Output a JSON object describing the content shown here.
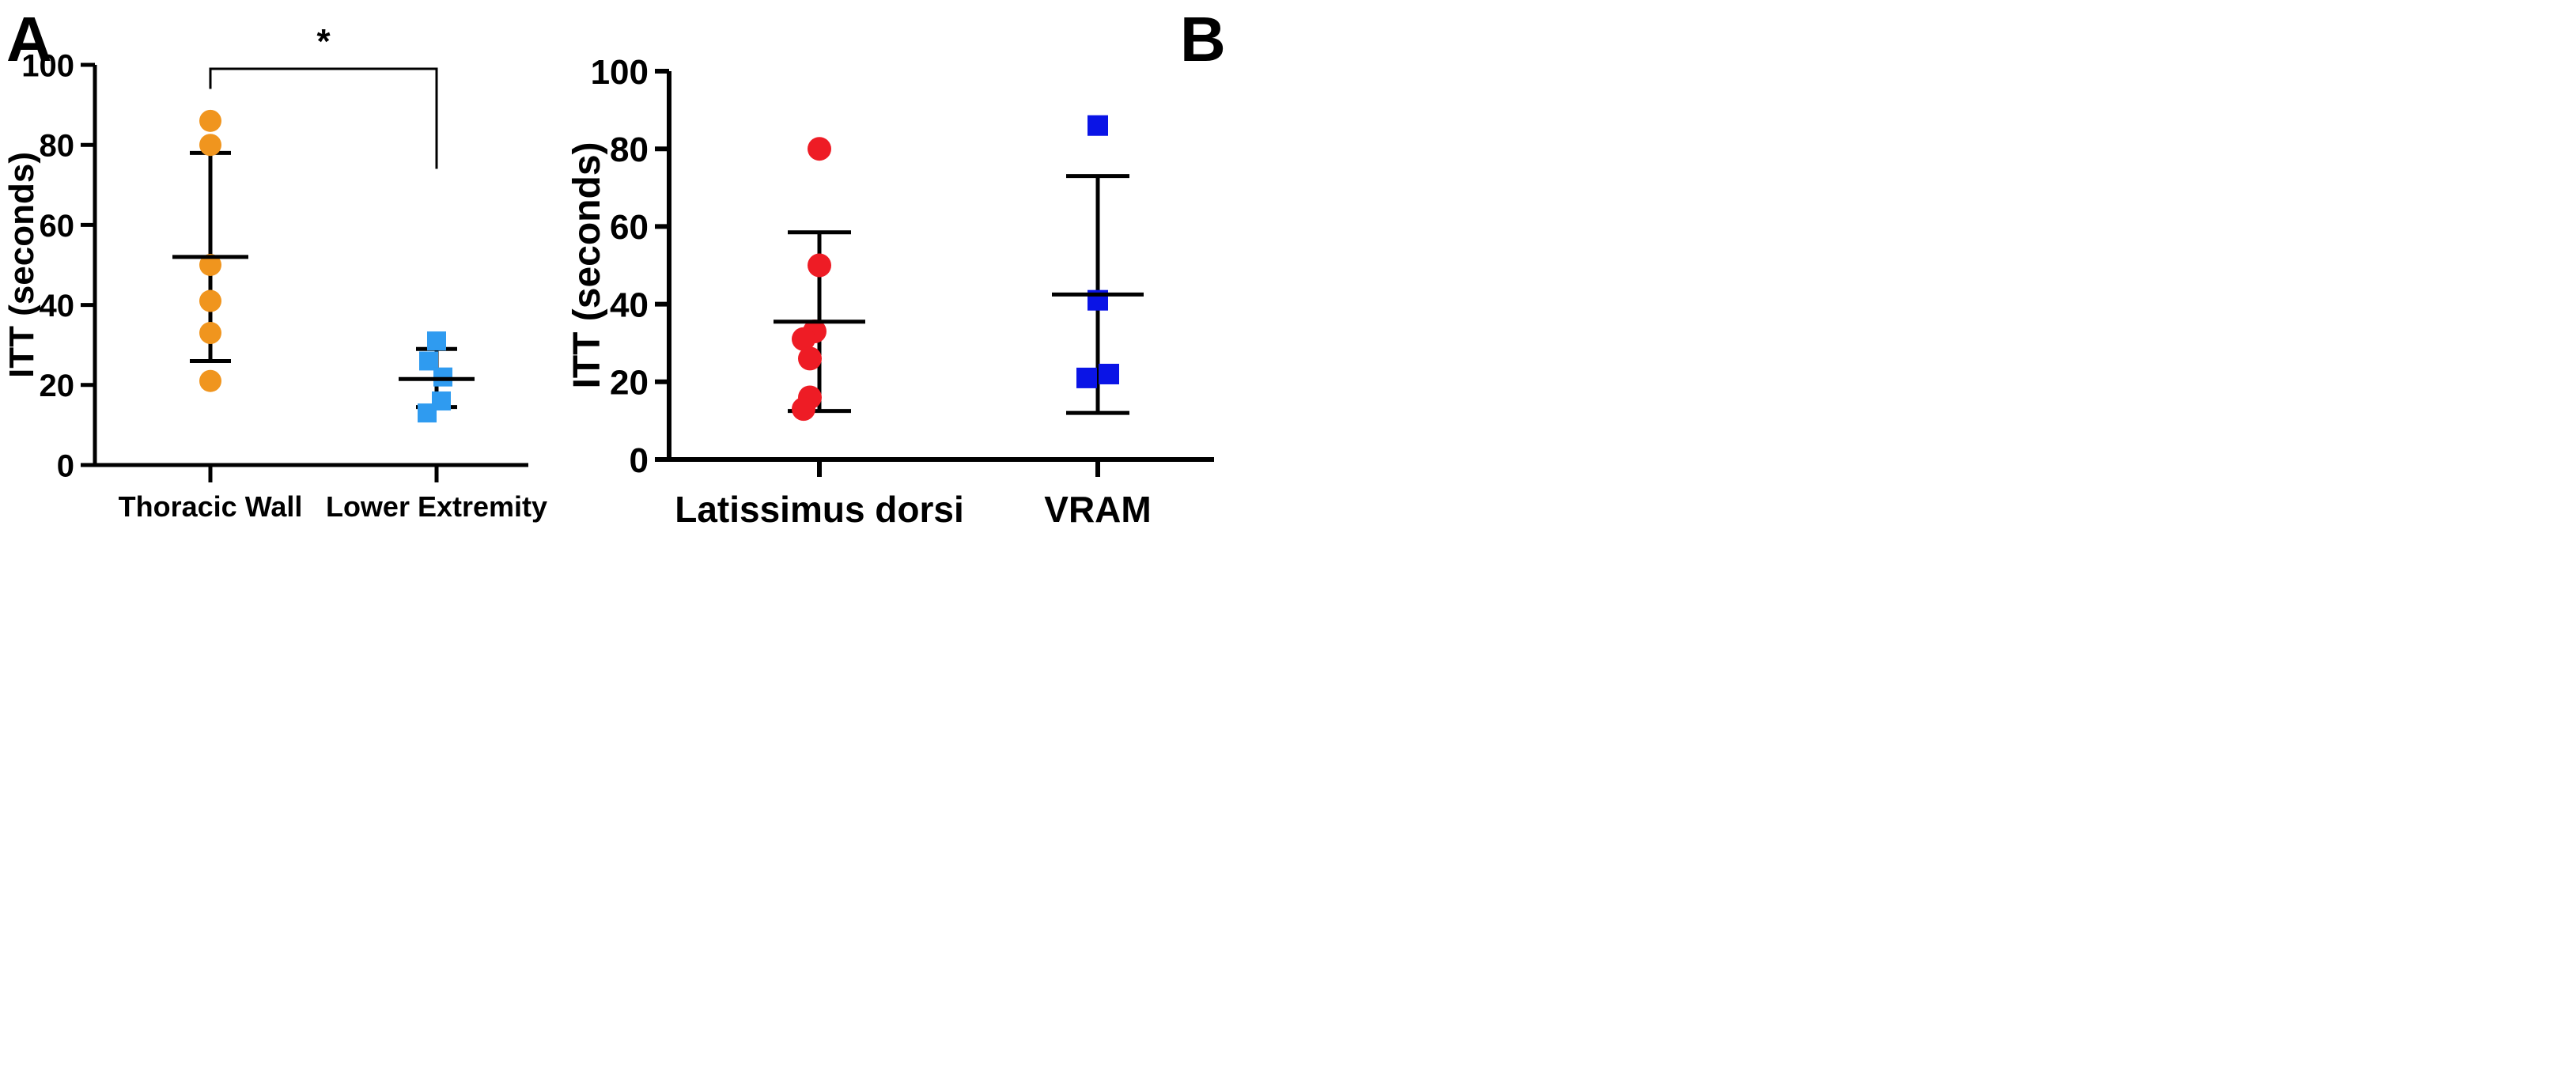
{
  "chart_data": [
    {
      "panel": "A",
      "type": "scatter",
      "title": "",
      "xlabel": "",
      "ylabel": "ITT (seconds)",
      "ylim": [
        0,
        100
      ],
      "yticks": [
        0,
        20,
        40,
        60,
        80,
        100
      ],
      "categories": [
        "Thoracic Wall",
        "Lower Extremity"
      ],
      "series": [
        {
          "name": "Thoracic Wall",
          "marker": "circle",
          "color": "#F0951E",
          "values": [
            86,
            80,
            50,
            41,
            33,
            21
          ],
          "mean": 52,
          "error_upper": 78,
          "error_lower": 26
        },
        {
          "name": "Lower Extremity",
          "marker": "square",
          "color": "#2F9BF0",
          "values": [
            31,
            26,
            22,
            16,
            13
          ],
          "mean": 21.5,
          "error_upper": 29,
          "error_lower": 14.5
        }
      ],
      "significance": {
        "label": "*",
        "from": "Thoracic Wall",
        "to": "Lower Extremity",
        "level": 99,
        "left_end": 94,
        "right_end": 74
      }
    },
    {
      "panel": "B",
      "type": "scatter",
      "title": "",
      "xlabel": "",
      "ylabel": "ITT (seconds)",
      "ylim": [
        0,
        100
      ],
      "yticks": [
        0,
        20,
        40,
        60,
        80,
        100
      ],
      "categories": [
        "Latissimus dorsi",
        "VRAM"
      ],
      "series": [
        {
          "name": "Latissimus dorsi",
          "marker": "circle",
          "color": "#EE1C25",
          "values": [
            80,
            50,
            33,
            31,
            26,
            16,
            13
          ],
          "mean": 35.5,
          "error_upper": 58.5,
          "error_lower": 12.5
        },
        {
          "name": "VRAM",
          "marker": "square",
          "color": "#0A14E6",
          "values": [
            86,
            41,
            22,
            21
          ],
          "mean": 42.5,
          "error_upper": 73,
          "error_lower": 12
        }
      ]
    }
  ],
  "panels": {
    "a_label": "A",
    "b_label": "B"
  }
}
